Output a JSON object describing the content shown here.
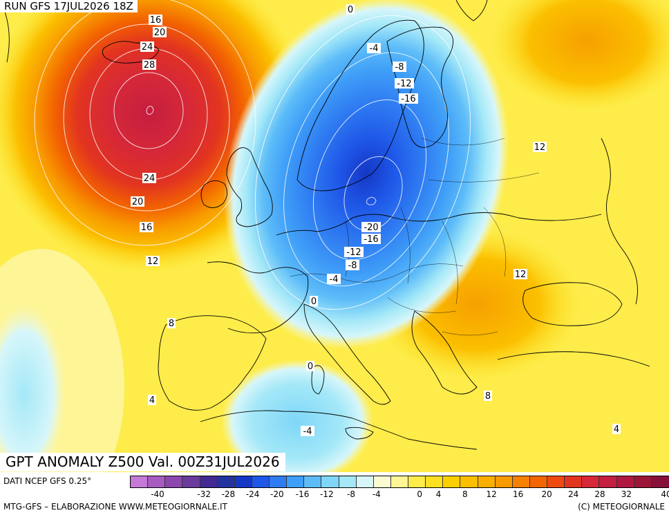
{
  "header": {
    "run_title": "RUN GFS 17JUL2026 18Z"
  },
  "map": {
    "title": "GPT ANOMALY Z500 Val. 00Z31JUL2026",
    "contour_labels": [
      "0",
      "16",
      "20",
      "24",
      "28",
      "24",
      "20",
      "16",
      "12",
      "8",
      "4",
      "-4",
      "-8",
      "-12",
      "-16",
      "12",
      "-20",
      "-16",
      "-12",
      "-8",
      "-4",
      "0",
      "12",
      "0",
      "8",
      "-4",
      "4"
    ]
  },
  "legend": {
    "ticks": [
      "-40",
      "-32",
      "-28",
      "-24",
      "-20",
      "-16",
      "-12",
      "-8",
      "-4",
      "0",
      "4",
      "8",
      "12",
      "16",
      "20",
      "24",
      "28",
      "32",
      "40"
    ],
    "colors": [
      "#c47ad6",
      "#a85cc2",
      "#8c47ad",
      "#6a3a9c",
      "#432a93",
      "#24349e",
      "#1537c6",
      "#1f58e8",
      "#2f7cf2",
      "#3f9ef7",
      "#5dbcf8",
      "#7fd6f8",
      "#a4e8f8",
      "#d6f6fa",
      "#fbfbd2",
      "#fdf596",
      "#fdec4a",
      "#fde020",
      "#fcd000",
      "#fbbf00",
      "#faae00",
      "#f89a00",
      "#f68000",
      "#f36500",
      "#ee4a10",
      "#e23420",
      "#d62838",
      "#c41e40",
      "#b01840",
      "#9c1438",
      "#86103a"
    ]
  },
  "footer": {
    "dati": "DATI NCEP GFS 0.25°",
    "credit": "MTG-GFS – ELABORAZIONE WWW.METEOGIORNALE.IT",
    "copyright": "(C) METEOGIORNALE"
  }
}
